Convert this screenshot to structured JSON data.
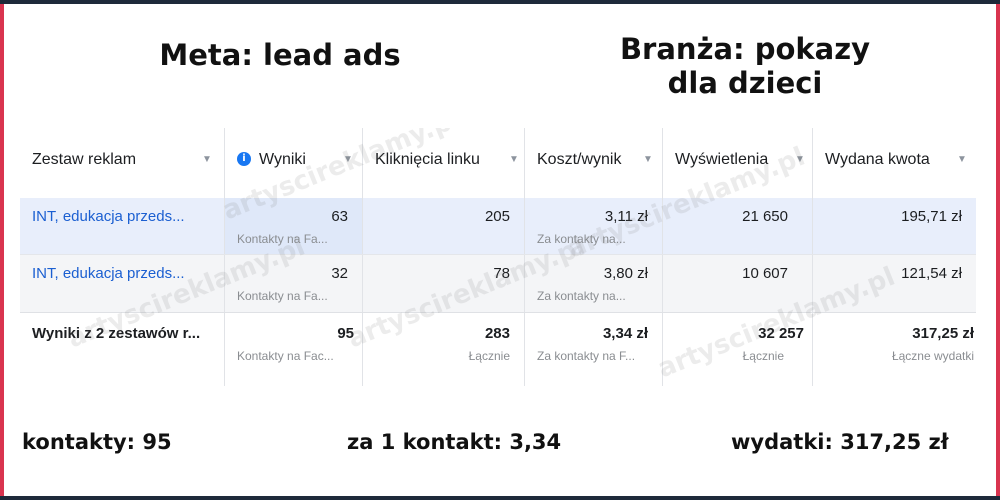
{
  "headings": {
    "left": "Meta: lead ads",
    "right_line1": "Branża: pokazy",
    "right_line2": "dla dzieci"
  },
  "table": {
    "columns": [
      {
        "label": "Zestaw reklam",
        "sortable": true
      },
      {
        "label": "Wyniki",
        "sortable": true,
        "info_icon": "info-icon"
      },
      {
        "label": "Kliknięcia linku",
        "sortable": true
      },
      {
        "label": "Koszt/wynik",
        "sortable": true
      },
      {
        "label": "Wyświetlenia",
        "sortable": true
      },
      {
        "label": "Wydana kwota",
        "sortable": true
      }
    ],
    "rows": [
      {
        "name": "INT, edukacja przeds...",
        "results": "63",
        "results_sub": "Kontakty na Fa...",
        "clicks": "205",
        "cost": "3,11 zł",
        "cost_sub": "Za kontakty na...",
        "impressions": "21 650",
        "spent": "195,71 zł"
      },
      {
        "name": "INT, edukacja przeds...",
        "results": "32",
        "results_sub": "Kontakty na Fa...",
        "clicks": "78",
        "cost": "3,80 zł",
        "cost_sub": "Za kontakty na...",
        "impressions": "10 607",
        "spent": "121,54 zł"
      }
    ],
    "total": {
      "name": "Wyniki z 2 zestawów r...",
      "results": "95",
      "results_sub": "Kontakty na Fac...",
      "clicks": "283",
      "clicks_sub": "Łącznie",
      "cost": "3,34 zł",
      "cost_sub": "Za kontakty na F...",
      "impressions": "32 257",
      "impressions_sub": "Łącznie",
      "spent": "317,25 zł",
      "spent_sub": "Łączne wydatki"
    }
  },
  "watermark": "artyscireklamy.pl",
  "footer": {
    "contacts": "kontakty: 95",
    "cost_per_contact": "za 1 kontakt: 3,34",
    "spend": "wydatki: 317,25 zł"
  },
  "colors": {
    "frame_side": "#d9344f",
    "frame_edge": "#1e2a3a",
    "link": "#1b5fd1",
    "info_icon": "#1877f2",
    "row_highlight": "#e8eefb"
  }
}
